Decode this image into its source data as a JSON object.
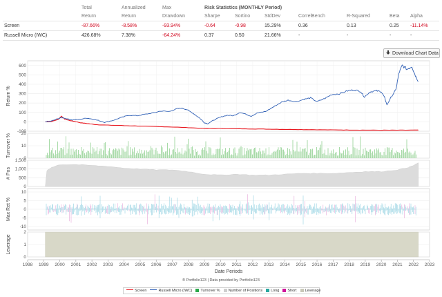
{
  "stats": {
    "headers": [
      {
        "line1": "Total",
        "line2": "Return"
      },
      {
        "line1": "Annualized",
        "line2": "Return"
      },
      {
        "line1": "Max",
        "line2": "Drawdown"
      },
      {
        "line1": "Risk Statistics (MONTHLY Period)",
        "line2": "Sharpe"
      },
      {
        "line1": "",
        "line2": "Sortino"
      },
      {
        "line1": "",
        "line2": "StdDev"
      },
      {
        "line1": "",
        "line2": "CorrelBench"
      },
      {
        "line1": "",
        "line2": "R-Squared"
      },
      {
        "line1": "",
        "line2": "Beta"
      },
      {
        "line1": "",
        "line2": "Alpha"
      }
    ],
    "rows": [
      {
        "name": "Screen",
        "values": [
          "-87.66%",
          "-8.58%",
          "-93.94%",
          "-0.64",
          "-0.98",
          "15.29%",
          "0.36",
          "0.13",
          "0.25",
          "-11.14%"
        ]
      },
      {
        "name": "Russell Micro (IWC)",
        "values": [
          "426.68%",
          "7.38%",
          "-64.24%",
          "0.37",
          "0.50",
          "21.66%",
          "-",
          "-",
          "-",
          "-"
        ]
      }
    ]
  },
  "download_label": "Download Chart Data",
  "credit": "® Portfolio123 | Data provided by Portfolio123",
  "colors": {
    "screen": "#e8171f",
    "bench": "#2f5fb5",
    "turnover": "#9ed69e",
    "positions": "#dcdcdc",
    "long": "#2aa84a",
    "short": "#d0139a",
    "leverage": "#d8d8c8"
  },
  "legend": [
    {
      "label": "Screen",
      "kind": "line",
      "color": "#e8171f"
    },
    {
      "label": "Russell Micro (IWC)",
      "kind": "line",
      "color": "#2f5fb5"
    },
    {
      "label": "Turnover %",
      "kind": "box",
      "color": "#2aa84a"
    },
    {
      "label": "Number of Positions",
      "kind": "box",
      "color": "#cfcfcf"
    },
    {
      "label": "Long",
      "kind": "box",
      "color": "#2aa8a0"
    },
    {
      "label": "Short",
      "kind": "box",
      "color": "#d0139a"
    },
    {
      "label": "Leverage",
      "kind": "box",
      "color": "#c8c8b8"
    }
  ],
  "chart_data": [
    {
      "type": "line",
      "panel": "return",
      "ylabel": "Return %",
      "xlabel": "Date Periods",
      "ylim": [
        -100,
        650
      ],
      "yticks": [
        600,
        500,
        400,
        300,
        200,
        100,
        0,
        -100
      ],
      "xlim": [
        1998,
        2023
      ],
      "xticks": [
        1998,
        1999,
        2000,
        2001,
        2002,
        2003,
        2004,
        2005,
        2006,
        2007,
        2008,
        2009,
        2010,
        2011,
        2012,
        2013,
        2014,
        2015,
        2016,
        2017,
        2018,
        2019,
        2020,
        2021,
        2022,
        2023
      ],
      "series": [
        {
          "name": "Screen",
          "x": [
            1999.1,
            1999.5,
            1999.9,
            2000.1,
            2000.3,
            2000.6,
            2000.9,
            2001.3,
            2001.8,
            2002.3,
            2003,
            2004,
            2005,
            2006,
            2007,
            2008,
            2009,
            2010,
            2011,
            2012,
            2013,
            2014,
            2015,
            2016,
            2017,
            2018,
            2019,
            2020,
            2021,
            2022,
            2022.3
          ],
          "values": [
            0,
            5,
            25,
            60,
            30,
            15,
            5,
            -10,
            -20,
            -30,
            -35,
            -40,
            -45,
            -50,
            -55,
            -62,
            -70,
            -72,
            -74,
            -75,
            -78,
            -80,
            -82,
            -84,
            -86,
            -87,
            -88,
            -89,
            -89,
            -88,
            -88
          ]
        },
        {
          "name": "Russell Micro (IWC)",
          "x": [
            1999.1,
            1999.5,
            1999.9,
            2000.2,
            2000.5,
            2000.8,
            2001.2,
            2001.7,
            2002.0,
            2002.4,
            2002.8,
            2003.3,
            2003.8,
            2004.3,
            2004.8,
            2005.3,
            2005.8,
            2006.3,
            2006.8,
            2007.3,
            2007.6,
            2007.9,
            2008.3,
            2008.7,
            2009.0,
            2009.2,
            2009.6,
            2010.0,
            2010.4,
            2010.8,
            2011.2,
            2011.6,
            2011.9,
            2012.3,
            2012.8,
            2013.3,
            2013.8,
            2014.2,
            2014.7,
            2015.2,
            2015.6,
            2016.0,
            2016.5,
            2016.9,
            2017.4,
            2017.9,
            2018.3,
            2018.7,
            2018.95,
            2019.3,
            2019.7,
            2020.0,
            2020.2,
            2020.35,
            2020.6,
            2020.9,
            2021.1,
            2021.3,
            2021.6,
            2021.9,
            2022.1,
            2022.3
          ],
          "values": [
            0,
            10,
            35,
            45,
            30,
            20,
            25,
            40,
            30,
            15,
            -5,
            15,
            45,
            70,
            65,
            80,
            95,
            115,
            110,
            140,
            145,
            130,
            90,
            40,
            -10,
            -20,
            20,
            50,
            70,
            65,
            100,
            80,
            60,
            95,
            110,
            160,
            210,
            230,
            215,
            240,
            255,
            215,
            250,
            290,
            300,
            330,
            340,
            325,
            265,
            320,
            330,
            320,
            260,
            180,
            260,
            340,
            520,
            600,
            560,
            590,
            500,
            430
          ]
        }
      ]
    },
    {
      "type": "bar",
      "panel": "turnover",
      "ylabel": "Turnover %",
      "ylim": [
        0,
        20
      ],
      "yticks": [
        20,
        10,
        0
      ],
      "series": [
        {
          "name": "Turnover %",
          "values_note_range": [
            2,
            18
          ]
        }
      ]
    },
    {
      "type": "area",
      "panel": "positions",
      "ylabel": "# Pos",
      "ylim": [
        0,
        1500
      ],
      "yticks": [
        1500,
        1000,
        500,
        0
      ],
      "series": [
        {
          "name": "Number of Positions",
          "x": [
            1999.1,
            1999.2,
            1999.5,
            2000,
            2001,
            2002,
            2003,
            2004,
            2005,
            2006,
            2007,
            2008,
            2009,
            2010,
            2011,
            2012,
            2013,
            2014,
            2015,
            2016,
            2017,
            2018,
            2019,
            2020,
            2021,
            2021.7,
            2022,
            2022.3
          ],
          "values": [
            0,
            900,
            1100,
            1250,
            1250,
            1200,
            1150,
            1050,
            1000,
            950,
            950,
            850,
            700,
            650,
            700,
            650,
            650,
            700,
            750,
            750,
            750,
            800,
            850,
            850,
            950,
            1100,
            1200,
            1350
          ]
        }
      ]
    },
    {
      "type": "bar",
      "panel": "maxret",
      "ylabel": "Max Ret %",
      "ylim": [
        -12,
        12
      ],
      "yticks": [
        10,
        5,
        0,
        -5,
        -10
      ]
    },
    {
      "type": "area",
      "panel": "leverage",
      "ylabel": "Leverage",
      "ylim": [
        0,
        2
      ],
      "yticks": [
        2,
        1,
        0
      ],
      "series": [
        {
          "name": "Leverage",
          "x": [
            1999.1,
            2022.3
          ],
          "values": [
            2,
            2
          ]
        }
      ]
    }
  ]
}
